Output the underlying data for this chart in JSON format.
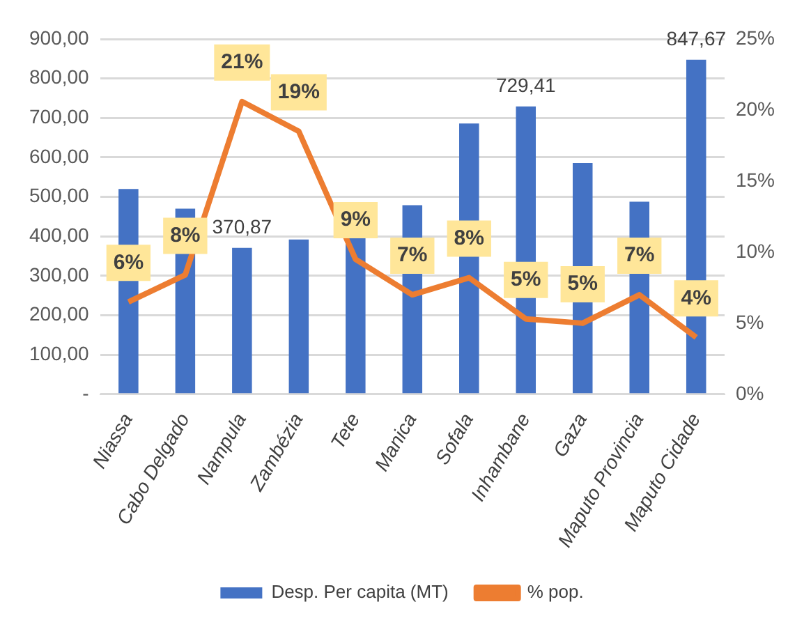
{
  "chart_data": {
    "type": "bar",
    "categories": [
      "Niassa",
      "Cabo Delgado",
      "Nampula",
      "Zambézia",
      "Tete",
      "Manica",
      "Sofala",
      "Inhambane",
      "Gaza",
      "Maputo Provincia",
      "Maputo Cidade"
    ],
    "series": [
      {
        "name": "Desp. Per capita (MT)",
        "color": "#4472c4",
        "values": [
          520,
          470,
          370.87,
          392,
          399,
          479,
          686,
          729.41,
          586,
          488,
          847.67
        ],
        "value_labels": [
          null,
          null,
          "370,87",
          null,
          null,
          null,
          null,
          "729,41",
          null,
          null,
          "847,67"
        ]
      },
      {
        "name": "% pop.",
        "type": "line",
        "axis": "y2",
        "color": "#ed7d31",
        "marker": "none",
        "values": [
          6.5,
          8.4,
          20.6,
          18.5,
          9.5,
          7.0,
          8.2,
          5.3,
          5.0,
          7.0,
          4.0
        ],
        "value_labels": [
          "6%",
          "8%",
          "21%",
          "19%",
          "9%",
          "7%",
          "8%",
          "5%",
          "5%",
          "7%",
          "4%"
        ]
      }
    ],
    "ylim": [
      0,
      900
    ],
    "yticks": [
      {
        "value": 0,
        "label": "-"
      },
      {
        "value": 100,
        "label": "100,00"
      },
      {
        "value": 200,
        "label": "200,00"
      },
      {
        "value": 300,
        "label": "300,00"
      },
      {
        "value": 400,
        "label": "400,00"
      },
      {
        "value": 500,
        "label": "500,00"
      },
      {
        "value": 600,
        "label": "600,00"
      },
      {
        "value": 700,
        "label": "700,00"
      },
      {
        "value": 800,
        "label": "800,00"
      },
      {
        "value": 900,
        "label": "900,00"
      }
    ],
    "y2lim": [
      0,
      25
    ],
    "y2ticks": [
      {
        "value": 0,
        "label": "0%"
      },
      {
        "value": 5,
        "label": "5%"
      },
      {
        "value": 10,
        "label": "10%"
      },
      {
        "value": 15,
        "label": "15%"
      },
      {
        "value": 20,
        "label": "20%"
      },
      {
        "value": 25,
        "label": "25%"
      }
    ],
    "grid": "y",
    "legend": "bottom"
  }
}
